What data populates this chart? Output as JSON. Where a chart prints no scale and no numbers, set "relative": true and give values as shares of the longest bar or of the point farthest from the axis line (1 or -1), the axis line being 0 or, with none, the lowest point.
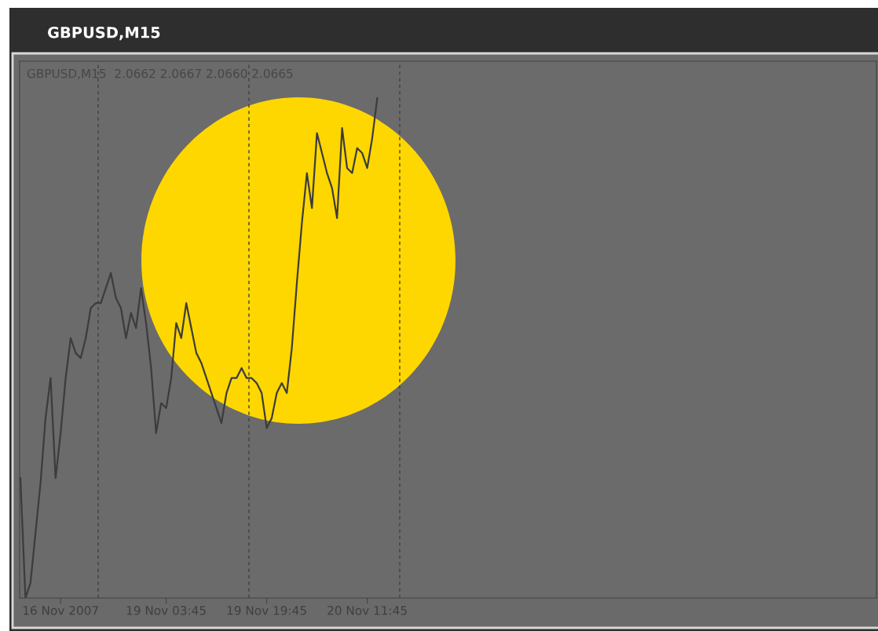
{
  "chart_data": {
    "type": "line",
    "title": "GBPUSD,M15",
    "subtitle": "GBPUSD,M15  2.0662 2.0667 2.0660 2.0665",
    "categories": [
      null,
      null,
      null,
      null,
      null,
      null,
      null,
      null,
      "16 Nov 2007",
      null,
      null,
      null,
      null,
      null,
      null,
      null,
      null,
      null,
      null,
      null,
      null,
      null,
      null,
      null,
      null,
      null,
      null,
      null,
      null,
      "19 Nov 03:45",
      null,
      null,
      null,
      null,
      null,
      null,
      null,
      null,
      null,
      null,
      null,
      null,
      null,
      null,
      null,
      null,
      null,
      null,
      null,
      "19 Nov 19:45",
      null,
      null,
      null,
      null,
      null,
      null,
      null,
      null,
      null,
      null,
      null,
      null,
      null,
      null,
      null,
      null,
      null,
      null,
      null,
      "20 Nov 11:45",
      null,
      null
    ],
    "series": [
      {
        "color": "#3c3c3c",
        "values": [
          0.24,
          0,
          0.03,
          0.13,
          0.23,
          0.36,
          0.44,
          0.24,
          0.33,
          0.44,
          0.52,
          0.49,
          0.48,
          0.52,
          0.58,
          0.59,
          0.59,
          0.62,
          0.65,
          0.6,
          0.58,
          0.52,
          0.57,
          0.54,
          0.62,
          0.55,
          0.46,
          0.33,
          0.39,
          0.38,
          0.44,
          0.55,
          0.52,
          0.59,
          0.54,
          0.49,
          0.47,
          0.44,
          0.41,
          0.38,
          0.35,
          0.41,
          0.44,
          0.44,
          0.46,
          0.44,
          0.44,
          0.43,
          0.41,
          0.34,
          0.36,
          0.41,
          0.43,
          0.41,
          0.5,
          0.63,
          0.75,
          0.85,
          0.78,
          0.93,
          0.89,
          0.85,
          0.82,
          0.76,
          0.94,
          0.86,
          0.85,
          0.9,
          0.89,
          0.86,
          0.92,
          1
        ]
      }
    ],
    "relative": true,
    "tick_labels": "x"
  }
}
